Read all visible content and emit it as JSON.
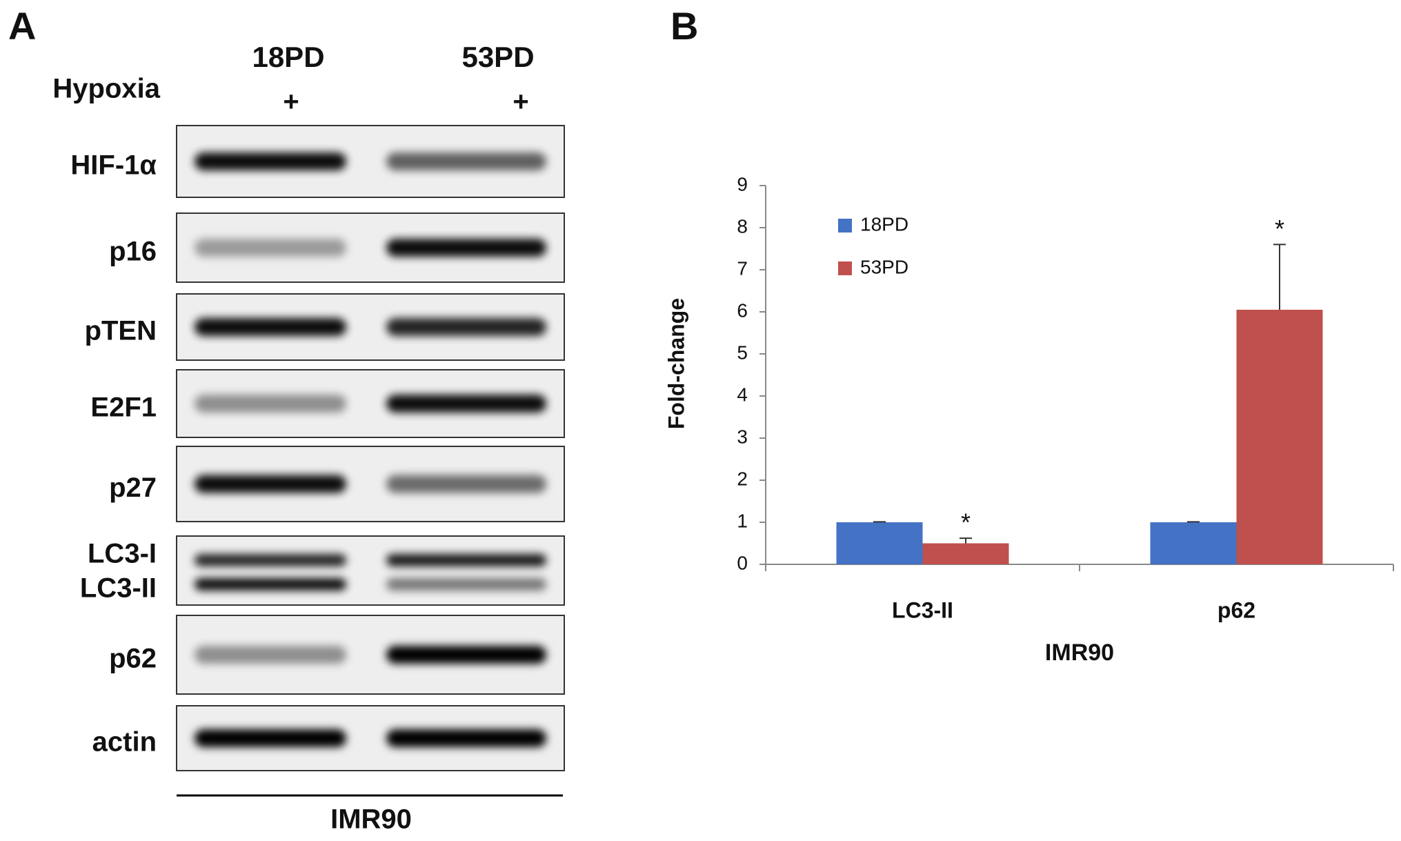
{
  "panel_a": {
    "label": "A",
    "columns": [
      "18PD",
      "53PD"
    ],
    "condition": "Hypoxia",
    "condition_marks": [
      "+",
      "+"
    ],
    "rows": [
      [
        "HIF-1α"
      ],
      [
        "p16"
      ],
      [
        "pTEN"
      ],
      [
        "E2F1"
      ],
      [
        "p27"
      ],
      [
        "LC3-I",
        "LC3-II"
      ],
      [
        "p62"
      ],
      [
        "actin"
      ]
    ],
    "cell_line": "IMR90"
  },
  "chart_data": {
    "type": "bar",
    "panel_label": "B",
    "categories": [
      "LC3-II",
      "p62"
    ],
    "xlabel": "IMR90",
    "ylabel": "Fold-change",
    "series": [
      {
        "name": "18PD",
        "color": "#4472c4",
        "values": [
          1,
          1
        ],
        "errors": [
          0.01,
          0.01
        ]
      },
      {
        "name": "53PD",
        "color": "#c0504d",
        "values": [
          0.5,
          6.05
        ],
        "errors": [
          0.12,
          1.55
        ],
        "markers": [
          "*",
          "*"
        ]
      }
    ],
    "ylim": [
      0,
      9
    ],
    "yticks": [
      0,
      1,
      2,
      3,
      4,
      5,
      6,
      7,
      8,
      9
    ],
    "grid": false,
    "legend": "upper left"
  }
}
